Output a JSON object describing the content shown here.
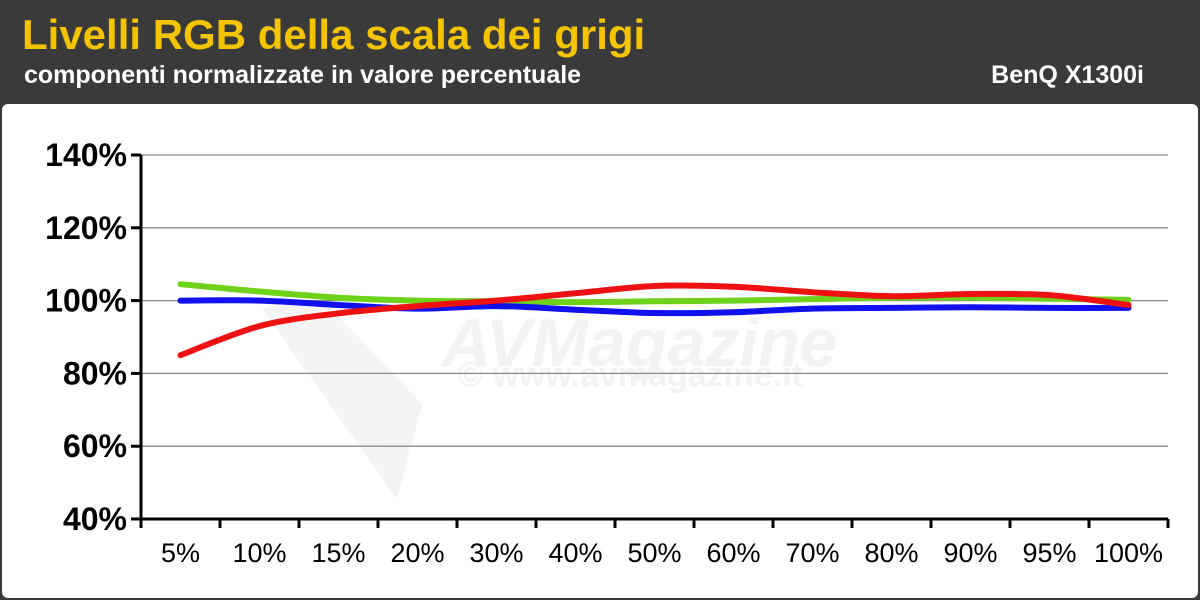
{
  "header": {
    "title": "Livelli RGB della scala dei grigi",
    "subtitle": "componenti normalizzate in valore percentuale",
    "device": "BenQ X1300i"
  },
  "watermark": {
    "logo_text": "AVMagazine",
    "url_text": "© www.avmagazine.it"
  },
  "chart_data": {
    "type": "line",
    "title": "Livelli RGB della scala dei grigi",
    "subtitle": "componenti normalizzate in valore percentuale",
    "xlabel": "",
    "ylabel": "",
    "categories": [
      "5%",
      "10%",
      "15%",
      "20%",
      "30%",
      "40%",
      "50%",
      "60%",
      "70%",
      "80%",
      "90%",
      "95%",
      "100%"
    ],
    "ylim": [
      40,
      140
    ],
    "yticks": [
      40,
      60,
      80,
      100,
      120,
      140
    ],
    "ytick_labels": [
      "40%",
      "60%",
      "80%",
      "100%",
      "120%",
      "140%"
    ],
    "grid": true,
    "legend": "none",
    "series": [
      {
        "color": "#6ed21a",
        "values": [
          104.5,
          102.5,
          100.8,
          100.0,
          99.8,
          99.6,
          99.8,
          100.0,
          100.4,
          100.8,
          100.8,
          100.5,
          100.2
        ]
      },
      {
        "color": "#1111ee",
        "values": [
          100.0,
          100.0,
          98.8,
          97.8,
          98.5,
          97.5,
          96.6,
          96.8,
          97.8,
          98.0,
          98.2,
          98.0,
          98.0
        ]
      },
      {
        "color": "#ee1111",
        "values": [
          85.0,
          93.0,
          96.5,
          98.5,
          100.0,
          102.0,
          104.0,
          103.8,
          102.3,
          101.2,
          101.8,
          101.5,
          98.8
        ]
      }
    ]
  }
}
